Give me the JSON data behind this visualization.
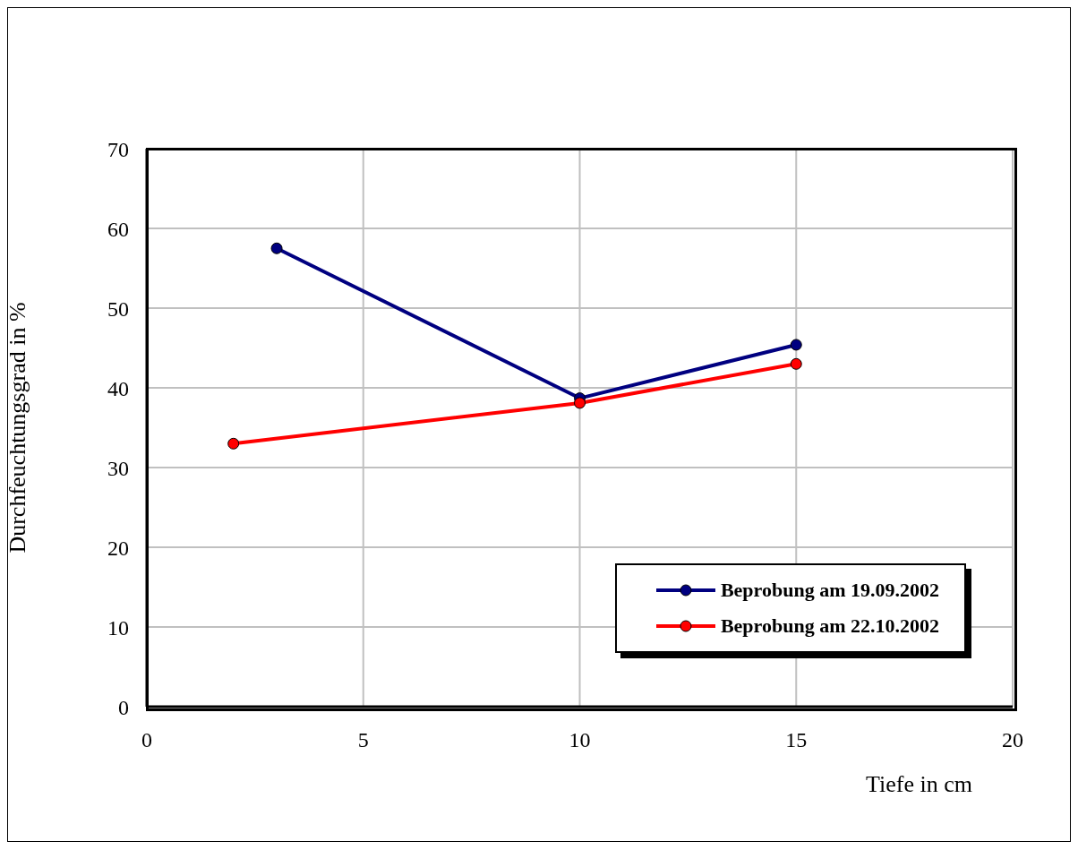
{
  "chart_data": {
    "type": "line",
    "xlabel": "Tiefe in cm",
    "ylabel": "Durchfeuchtungsgrad in %",
    "xlim": [
      0,
      20
    ],
    "xticks": [
      0,
      5,
      10,
      15,
      20
    ],
    "ylim": [
      0,
      70
    ],
    "yticks": [
      0,
      10,
      20,
      30,
      40,
      50,
      60,
      70
    ],
    "grid": true,
    "legend": "bottom right",
    "marker": "circle",
    "line_style": "solid",
    "series": [
      {
        "name": "Beprobung am 19.09.2002",
        "color": "#000080",
        "x": [
          3,
          10,
          15
        ],
        "values": [
          57.5,
          38.7,
          45.4
        ]
      },
      {
        "name": "Beprobung am 22.10.2002",
        "color": "#ff0000",
        "x": [
          2,
          10,
          15
        ],
        "values": [
          33,
          38.1,
          43
        ]
      }
    ]
  }
}
